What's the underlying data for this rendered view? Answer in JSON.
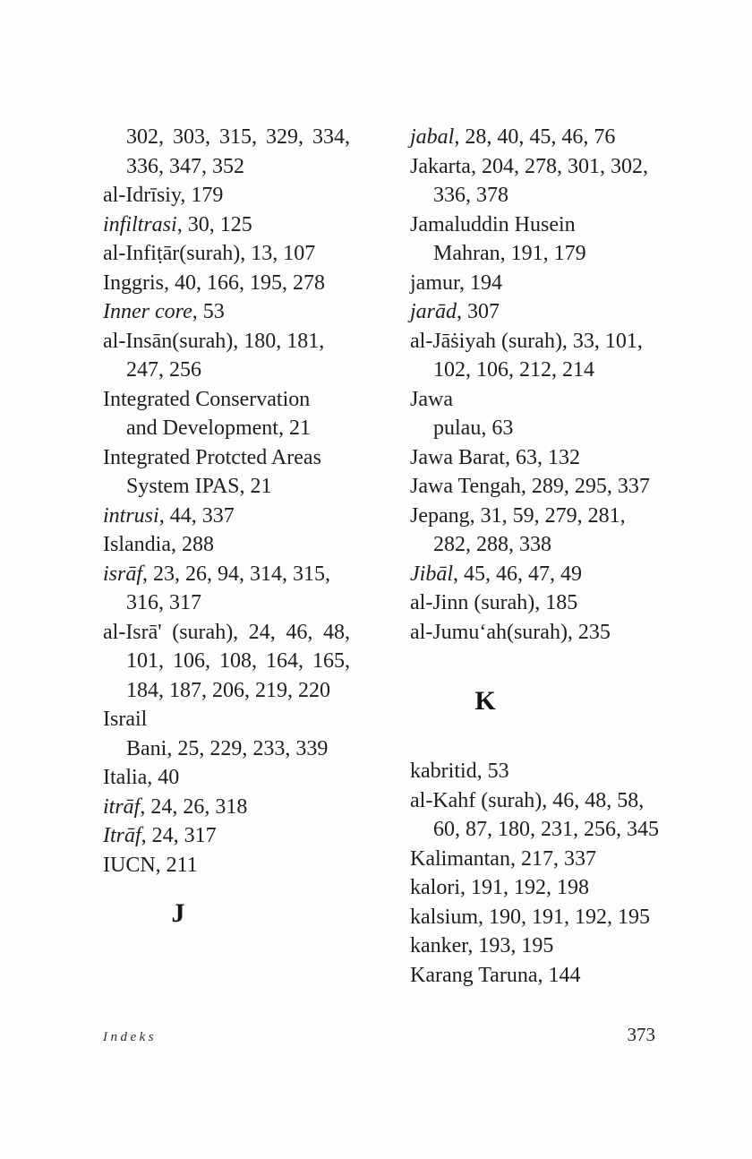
{
  "footer": {
    "section_label": "Indeks",
    "page_number": "373"
  },
  "colors": {
    "background": "#fdfdfb",
    "text": "#1e1e1e"
  },
  "index": {
    "columns": [
      {
        "side": "left",
        "lines": [
          {
            "text": "302, 303, 315, 329, 334,",
            "indent": 1,
            "justify": true
          },
          {
            "text": "336, 347, 352",
            "indent": 1
          },
          {
            "text": "al-Idrīsiy, 179"
          },
          {
            "text": "*infiltrasi*, 30, 125"
          },
          {
            "text": "al-Infiṭār(surah), 13, 107"
          },
          {
            "text": "Inggris, 40, 166, 195, 278"
          },
          {
            "text": "*Inner core*, 53"
          },
          {
            "text": "al-Insān(surah), 180, 181,"
          },
          {
            "text": "247, 256",
            "indent": 1
          },
          {
            "text": "Integrated Conservation"
          },
          {
            "text": "and Development, 21",
            "indent": 1
          },
          {
            "text": "Integrated Protcted Areas"
          },
          {
            "text": "System IPAS, 21",
            "indent": 1
          },
          {
            "text": "*intrusi*, 44, 337"
          },
          {
            "text": "Islandia, 288"
          },
          {
            "text": "*isrāf*, 23, 26, 94, 314, 315,"
          },
          {
            "text": "316, 317",
            "indent": 1
          },
          {
            "text": "al-Isrā' (surah), 24, 46, 48,",
            "justify": true
          },
          {
            "text": "101, 106, 108, 164, 165,",
            "indent": 1,
            "justify": true
          },
          {
            "text": "184, 187, 206, 219, 220",
            "indent": 1
          },
          {
            "text": "Israil"
          },
          {
            "text": "Bani, 25, 229, 233, 339",
            "indent": 1
          },
          {
            "text": "Italia, 40"
          },
          {
            "text": "*itrāf*, 24, 26, 318"
          },
          {
            "text": "*Itrāf*, 24, 317"
          },
          {
            "text": "IUCN, 211"
          },
          {
            "heading": "J",
            "gap": 20
          }
        ]
      },
      {
        "side": "right",
        "lines": [
          {
            "text": "*jabal*, 28, 40, 45, 46, 76"
          },
          {
            "text": "Jakarta, 204, 278, 301, 302,"
          },
          {
            "text": "336, 378",
            "indent": 1
          },
          {
            "text": "Jamaluddin Husein"
          },
          {
            "text": "Mahran, 191, 179",
            "indent": 1
          },
          {
            "text": "jamur, 194"
          },
          {
            "text": "*jarād*, 307"
          },
          {
            "text": "al-Jāṡiyah (surah), 33, 101,"
          },
          {
            "text": "102, 106, 212, 214",
            "indent": 1
          },
          {
            "text": "Jawa"
          },
          {
            "text": "pulau, 63",
            "indent": 1
          },
          {
            "text": "Jawa Barat, 63, 132"
          },
          {
            "text": "Jawa Tengah, 289, 295, 337"
          },
          {
            "text": "Jepang, 31, 59, 279, 281,"
          },
          {
            "text": "282, 288, 338",
            "indent": 1
          },
          {
            "text": "*Jibāl*, 45, 46, 47, 49"
          },
          {
            "text": "al-Jinn (surah), 185"
          },
          {
            "text": "al-Jumuʻah(surah), 235"
          },
          {
            "heading": "K",
            "gap": 43
          },
          {
            "text": "kabritid, 53",
            "gap": 44
          },
          {
            "text": "al-Kahf (surah), 46, 48, 58,"
          },
          {
            "text": "60, 87, 180, 231, 256, 345",
            "indent": 1
          },
          {
            "text": "Kalimantan, 217, 337"
          },
          {
            "text": "kalori, 191, 192, 198"
          },
          {
            "text": "kalsium, 190, 191, 192, 195"
          },
          {
            "text": "kanker, 193, 195"
          },
          {
            "text": "Karang Taruna, 144"
          }
        ]
      }
    ]
  }
}
